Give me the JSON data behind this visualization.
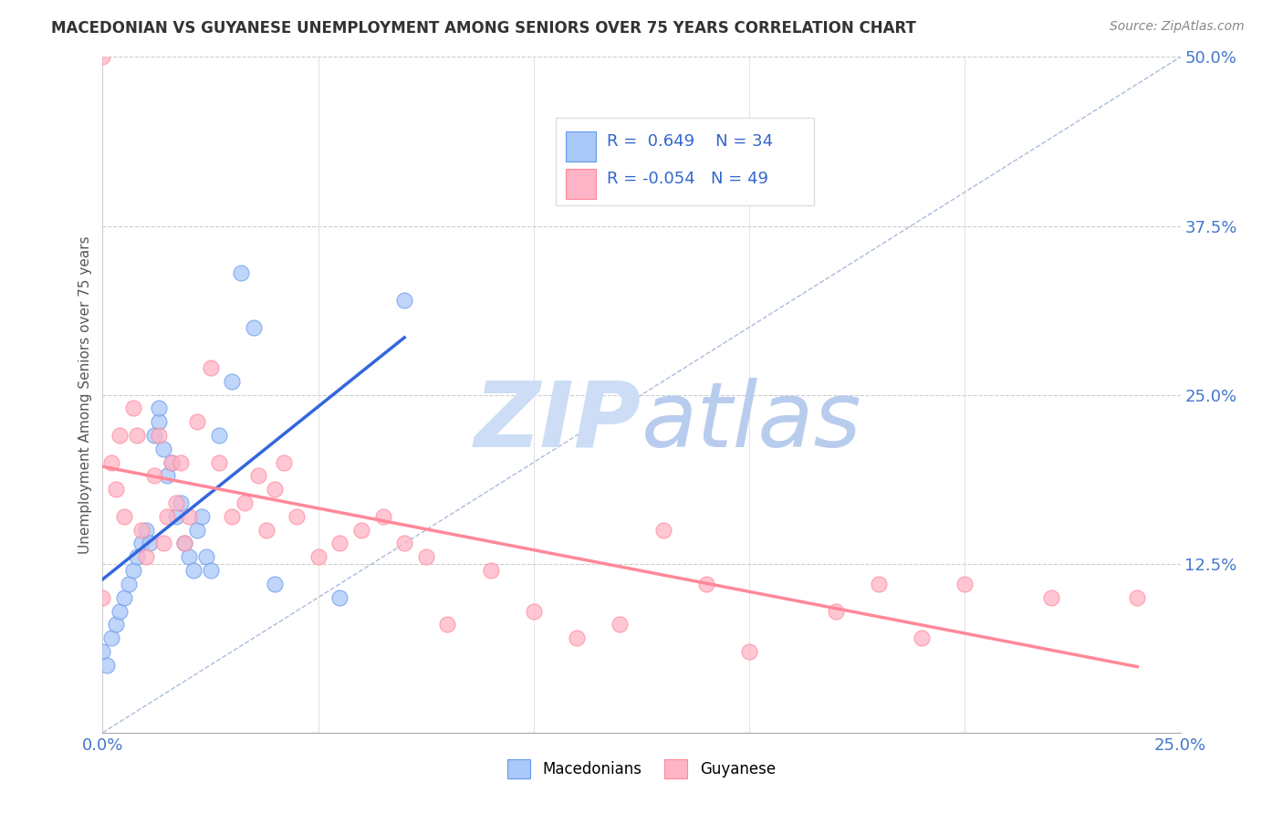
{
  "title": "MACEDONIAN VS GUYANESE UNEMPLOYMENT AMONG SENIORS OVER 75 YEARS CORRELATION CHART",
  "source": "Source: ZipAtlas.com",
  "ylabel": "Unemployment Among Seniors over 75 years",
  "xlim": [
    0.0,
    0.25
  ],
  "ylim": [
    0.0,
    0.5
  ],
  "yticks": [
    0.0,
    0.125,
    0.25,
    0.375,
    0.5
  ],
  "yticklabels": [
    "",
    "12.5%",
    "25.0%",
    "37.5%",
    "50.0%"
  ],
  "xtick_left_label": "0.0%",
  "xtick_right_label": "25.0%",
  "mac_R": 0.649,
  "mac_N": 34,
  "guy_R": -0.054,
  "guy_N": 49,
  "mac_color": "#aac8f8",
  "guy_color": "#ffb3c6",
  "mac_edge_color": "#6699ee",
  "guy_edge_color": "#ff8899",
  "mac_line_color": "#3366dd",
  "guy_line_color": "#ff8899",
  "ref_line_color": "#aabbdd",
  "watermark_zip_color": "#ccddf5",
  "watermark_atlas_color": "#b8ccee",
  "background_color": "#ffffff",
  "mac_x": [
    0.0,
    0.001,
    0.002,
    0.003,
    0.004,
    0.005,
    0.006,
    0.007,
    0.008,
    0.009,
    0.01,
    0.011,
    0.012,
    0.013,
    0.013,
    0.014,
    0.015,
    0.016,
    0.017,
    0.018,
    0.019,
    0.02,
    0.021,
    0.022,
    0.023,
    0.024,
    0.025,
    0.027,
    0.03,
    0.032,
    0.035,
    0.04,
    0.055,
    0.07
  ],
  "mac_y": [
    0.06,
    0.05,
    0.07,
    0.08,
    0.09,
    0.1,
    0.11,
    0.12,
    0.13,
    0.14,
    0.15,
    0.14,
    0.22,
    0.23,
    0.24,
    0.21,
    0.19,
    0.2,
    0.16,
    0.17,
    0.14,
    0.13,
    0.12,
    0.15,
    0.16,
    0.13,
    0.12,
    0.22,
    0.26,
    0.34,
    0.3,
    0.11,
    0.1,
    0.32
  ],
  "guy_x": [
    0.0,
    0.0,
    0.002,
    0.003,
    0.004,
    0.005,
    0.007,
    0.008,
    0.009,
    0.01,
    0.012,
    0.013,
    0.014,
    0.015,
    0.016,
    0.017,
    0.018,
    0.019,
    0.02,
    0.022,
    0.025,
    0.027,
    0.03,
    0.033,
    0.036,
    0.038,
    0.04,
    0.042,
    0.045,
    0.05,
    0.055,
    0.06,
    0.065,
    0.07,
    0.075,
    0.08,
    0.09,
    0.1,
    0.11,
    0.12,
    0.13,
    0.14,
    0.15,
    0.17,
    0.18,
    0.19,
    0.2,
    0.22,
    0.24
  ],
  "guy_y": [
    0.5,
    0.1,
    0.2,
    0.18,
    0.22,
    0.16,
    0.24,
    0.22,
    0.15,
    0.13,
    0.19,
    0.22,
    0.14,
    0.16,
    0.2,
    0.17,
    0.2,
    0.14,
    0.16,
    0.23,
    0.27,
    0.2,
    0.16,
    0.17,
    0.19,
    0.15,
    0.18,
    0.2,
    0.16,
    0.13,
    0.14,
    0.15,
    0.16,
    0.14,
    0.13,
    0.08,
    0.12,
    0.09,
    0.07,
    0.08,
    0.15,
    0.11,
    0.06,
    0.09,
    0.11,
    0.07,
    0.11,
    0.1,
    0.1
  ]
}
